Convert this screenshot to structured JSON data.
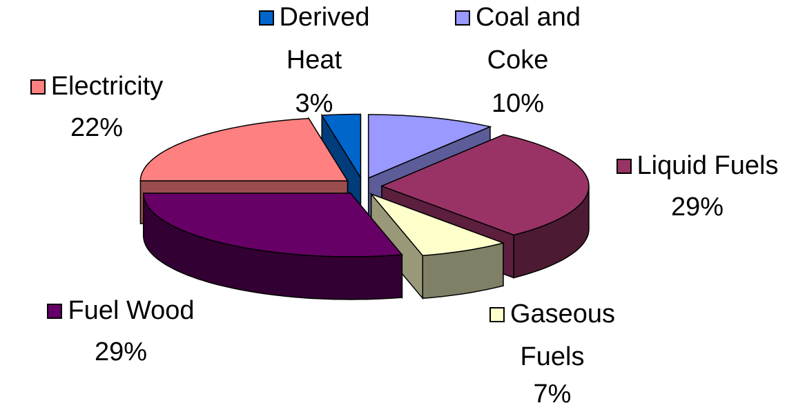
{
  "chart_data": {
    "type": "pie",
    "categories": [
      "Coal and Coke",
      "Liquid Fuels",
      "Gaseous Fuels",
      "Fuel Wood",
      "Electricity",
      "Derived Heat"
    ],
    "values": [
      10,
      29,
      7,
      29,
      22,
      3
    ],
    "value_labels": [
      "10%",
      "29%",
      "7%",
      "29%",
      "22%",
      "3%"
    ],
    "colors": [
      "#9999ff",
      "#993366",
      "#ffffcc",
      "#660066",
      "#ff8080",
      "#0066cc"
    ]
  }
}
